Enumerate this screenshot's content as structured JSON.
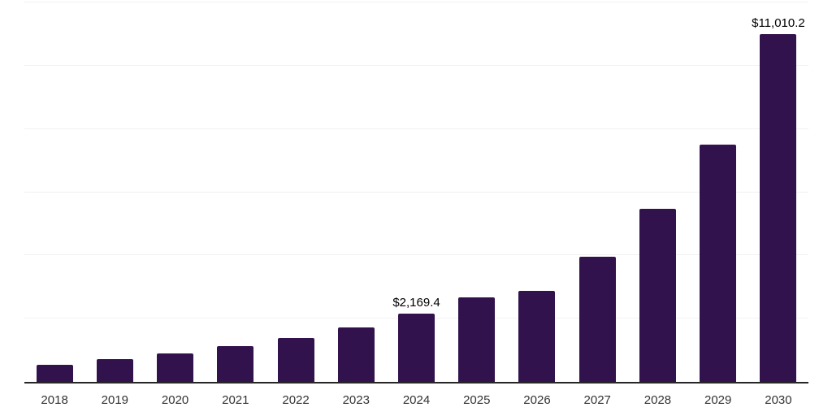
{
  "chart_data": {
    "type": "bar",
    "title": "",
    "categories": [
      "2018",
      "2019",
      "2020",
      "2021",
      "2022",
      "2023",
      "2024",
      "2025",
      "2026",
      "2027",
      "2028",
      "2029",
      "2030"
    ],
    "values": [
      540,
      715,
      900,
      1125,
      1380,
      1730,
      2169.4,
      2680,
      2890,
      3950,
      5480,
      7510,
      11010.2
    ],
    "data_labels": [
      "",
      "",
      "",
      "",
      "",
      "",
      "$2,169.4",
      "",
      "",
      "",
      "",
      "",
      "$11,010.2"
    ],
    "xlabel": "",
    "ylabel": "",
    "ylim": [
      0,
      12000
    ],
    "gridline_values": [
      2000,
      4000,
      6000,
      8000,
      10000,
      12000
    ],
    "grid": true,
    "legend": false,
    "y_tick_labels_visible": false,
    "x_axis_line_visible": true
  },
  "colors": {
    "bar": "#32124d",
    "gridline": "#f2f2f2",
    "axis_line": "#262626",
    "tick_label": "#333333",
    "data_label": "#000000",
    "background": "#ffffff"
  }
}
